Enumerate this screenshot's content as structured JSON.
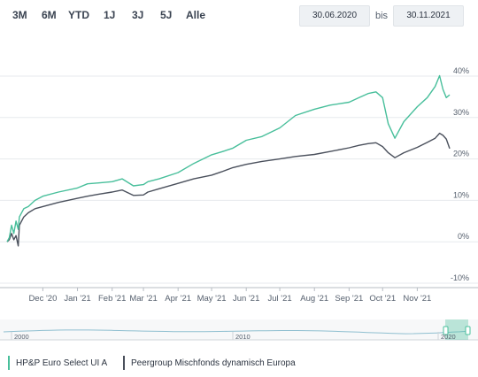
{
  "range_buttons": [
    "3M",
    "6M",
    "YTD",
    "1J",
    "3J",
    "5J",
    "Alle"
  ],
  "date_from": "30.06.2020",
  "date_sep": "bis",
  "date_to": "30.11.2021",
  "colors": {
    "fund": "#48bf9b",
    "peer": "#4a505c",
    "grid": "#e7eaed",
    "axis": "#b7bcc3",
    "text": "#56606e"
  },
  "chart_data": {
    "type": "line",
    "ylim": [
      -10,
      40
    ],
    "yticks": [
      {
        "value": 40,
        "label": "40%"
      },
      {
        "value": 30,
        "label": "30%"
      },
      {
        "value": 20,
        "label": "20%"
      },
      {
        "value": 10,
        "label": "10%"
      },
      {
        "value": 0,
        "label": "0%"
      },
      {
        "value": -10,
        "label": "-10%"
      }
    ],
    "xlim": [
      "2020-10-30",
      "2021-11-30"
    ],
    "xticks": [
      {
        "x": "2020-12-01",
        "label": "Dec '20"
      },
      {
        "x": "2021-01-01",
        "label": "Jan '21"
      },
      {
        "x": "2021-02-01",
        "label": "Feb '21"
      },
      {
        "x": "2021-03-01",
        "label": "Mar '21"
      },
      {
        "x": "2021-04-01",
        "label": "Apr '21"
      },
      {
        "x": "2021-05-01",
        "label": "May '21"
      },
      {
        "x": "2021-06-01",
        "label": "Jun '21"
      },
      {
        "x": "2021-07-01",
        "label": "Jul '21"
      },
      {
        "x": "2021-08-01",
        "label": "Aug '21"
      },
      {
        "x": "2021-09-01",
        "label": "Sep '21"
      },
      {
        "x": "2021-10-01",
        "label": "Oct '21"
      },
      {
        "x": "2021-11-01",
        "label": "Nov '21"
      }
    ],
    "series": [
      {
        "name": "HP&P Euro Select UI A",
        "x": [
          "2020-10-30",
          "2020-11-01",
          "2020-11-03",
          "2020-11-05",
          "2020-11-07",
          "2020-11-09",
          "2020-11-10",
          "2020-11-14",
          "2020-11-18",
          "2020-11-24",
          "2020-12-01",
          "2020-12-15",
          "2021-01-01",
          "2021-01-10",
          "2021-01-20",
          "2021-02-01",
          "2021-02-10",
          "2021-02-20",
          "2021-03-01",
          "2021-03-05",
          "2021-03-15",
          "2021-04-01",
          "2021-04-15",
          "2021-05-01",
          "2021-05-10",
          "2021-05-20",
          "2021-06-01",
          "2021-06-15",
          "2021-07-01",
          "2021-07-15",
          "2021-08-01",
          "2021-08-15",
          "2021-09-01",
          "2021-09-10",
          "2021-09-18",
          "2021-09-25",
          "2021-10-01",
          "2021-10-06",
          "2021-10-12",
          "2021-10-20",
          "2021-11-01",
          "2021-11-10",
          "2021-11-17",
          "2021-11-21",
          "2021-11-24",
          "2021-11-27",
          "2021-11-30"
        ],
        "y": [
          0,
          1,
          4,
          2,
          5,
          3,
          6,
          8,
          8.5,
          10,
          11,
          12,
          13,
          14,
          14.2,
          14.5,
          15.2,
          13.5,
          13.8,
          14.5,
          15.2,
          16.7,
          18.9,
          21.0,
          21.7,
          22.6,
          24.5,
          25.4,
          27.5,
          30.5,
          32.0,
          33.0,
          33.7,
          34.8,
          35.8,
          36.2,
          34.8,
          28.5,
          25.0,
          29.0,
          32.6,
          34.8,
          37.5,
          40.1,
          36.8,
          34.8,
          35.5
        ]
      },
      {
        "name": "Peergroup Mischfonds dynamisch Europa",
        "x": [
          "2020-10-30",
          "2020-11-01",
          "2020-11-03",
          "2020-11-05",
          "2020-11-07",
          "2020-11-09",
          "2020-11-10",
          "2020-11-14",
          "2020-11-18",
          "2020-11-24",
          "2020-12-01",
          "2020-12-15",
          "2021-01-01",
          "2021-01-10",
          "2021-01-20",
          "2021-02-01",
          "2021-02-10",
          "2021-02-20",
          "2021-03-01",
          "2021-03-05",
          "2021-03-15",
          "2021-04-01",
          "2021-04-15",
          "2021-05-01",
          "2021-05-10",
          "2021-05-20",
          "2021-06-01",
          "2021-06-15",
          "2021-07-01",
          "2021-07-15",
          "2021-08-01",
          "2021-08-15",
          "2021-09-01",
          "2021-09-10",
          "2021-09-18",
          "2021-09-25",
          "2021-10-01",
          "2021-10-06",
          "2021-10-12",
          "2021-10-20",
          "2021-11-01",
          "2021-11-10",
          "2021-11-17",
          "2021-11-21",
          "2021-11-24",
          "2021-11-27",
          "2021-11-30"
        ],
        "y": [
          0,
          0.5,
          2,
          0.5,
          1.5,
          -1,
          4,
          6,
          7,
          8,
          8.5,
          9.5,
          10.5,
          11,
          11.5,
          12,
          12.5,
          11.2,
          11.3,
          12,
          12.8,
          14.1,
          15.2,
          16.1,
          16.9,
          17.9,
          18.7,
          19.4,
          20.0,
          20.6,
          21.1,
          21.8,
          22.7,
          23.3,
          23.7,
          23.9,
          23.0,
          21.5,
          20.3,
          21.5,
          22.8,
          24.0,
          25.0,
          26.2,
          25.7,
          24.8,
          22.5
        ]
      }
    ],
    "navigator": {
      "labels": [
        "2000",
        "2010",
        "2020"
      ]
    }
  }
}
